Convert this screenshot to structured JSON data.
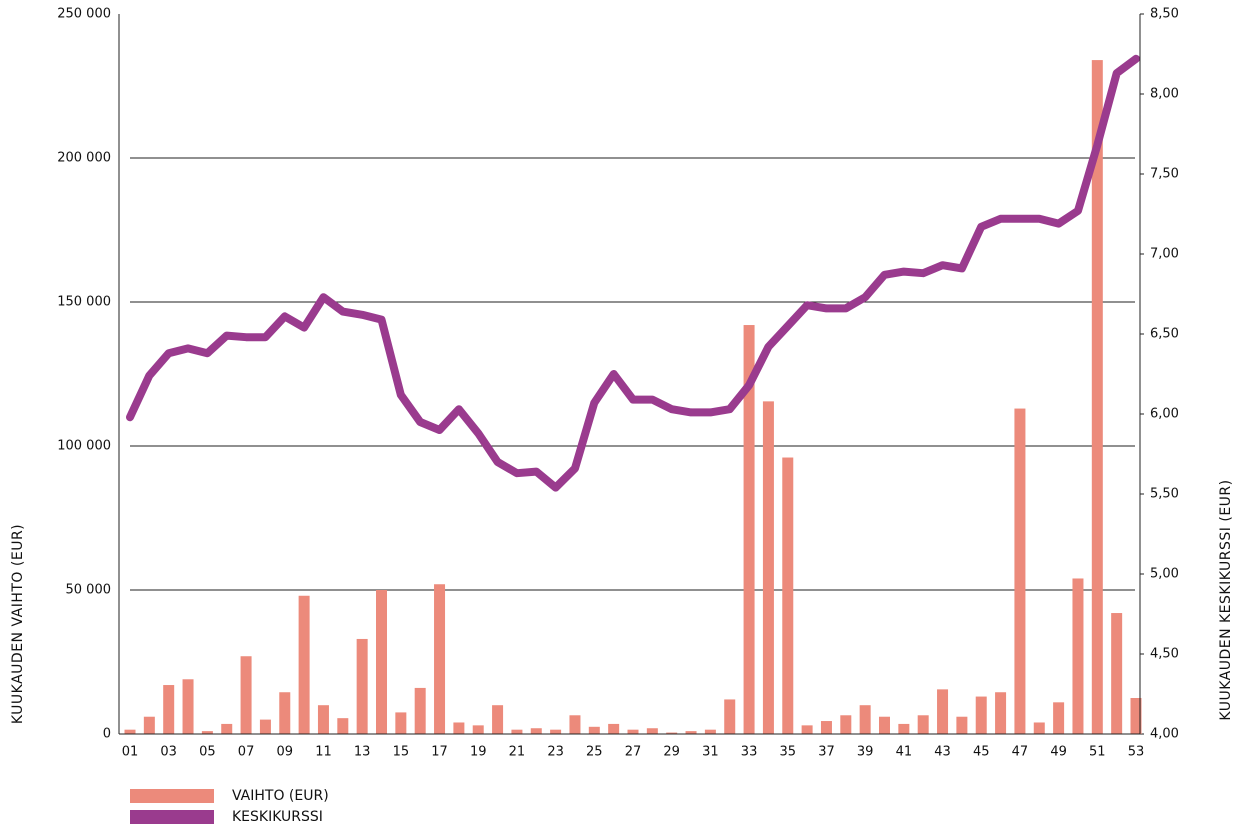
{
  "chart_data": {
    "type": "bar",
    "categories": [
      "01",
      null,
      "03",
      null,
      "05",
      null,
      "07",
      null,
      "09",
      null,
      "11",
      null,
      "13",
      null,
      "15",
      null,
      "17",
      null,
      "19",
      null,
      "21",
      null,
      "23",
      null,
      "25",
      null,
      "27",
      null,
      "29",
      null,
      "31",
      null,
      "33",
      null,
      "35",
      null,
      "37",
      null,
      "39",
      null,
      "41",
      null,
      "43",
      null,
      "45",
      null,
      "47",
      null,
      "49",
      null,
      "51",
      null,
      "53"
    ],
    "series": [
      {
        "name": "VAIHTO (EUR)",
        "type": "bar",
        "color": "#ec8a7b",
        "values": [
          1500,
          6000,
          17000,
          19000,
          1000,
          3500,
          27000,
          5000,
          14500,
          48000,
          10000,
          5500,
          33000,
          50000,
          7500,
          16000,
          52000,
          4000,
          3000,
          10000,
          1500,
          2000,
          1500,
          6500,
          2500,
          3500,
          1500,
          2000,
          500,
          1000,
          1500,
          12000,
          142000,
          115500,
          96000,
          3000,
          4500,
          6500,
          10000,
          6000,
          3500,
          6500,
          15500,
          6000,
          13000,
          14500,
          113000,
          4000,
          11000,
          54000,
          234000,
          42000,
          12500
        ]
      },
      {
        "name": "KESKIKURSSI",
        "type": "line",
        "axis": "y2",
        "color": "#9a3b8e",
        "values": [
          5.98,
          6.24,
          6.38,
          6.41,
          6.38,
          6.49,
          6.48,
          6.48,
          6.61,
          6.54,
          6.73,
          6.64,
          6.62,
          6.59,
          6.12,
          5.95,
          5.9,
          6.03,
          5.88,
          5.7,
          5.63,
          5.64,
          5.54,
          5.66,
          6.07,
          6.25,
          6.09,
          6.09,
          6.03,
          6.01,
          6.01,
          6.03,
          6.18,
          6.42,
          6.55,
          6.68,
          6.66,
          6.66,
          6.73,
          6.87,
          6.89,
          6.88,
          6.93,
          6.91,
          7.17,
          7.22,
          7.22,
          7.22,
          7.19,
          7.27,
          7.68,
          8.13,
          8.22
        ]
      }
    ],
    "y_label": "KUUKAUDEN VAIHTO (EUR)",
    "y2_label": "KUUKAUDEN KESKIKURSSI (EUR)",
    "ylim": [
      0,
      250000
    ],
    "yticks": [
      0,
      {
        "value": 50000,
        "label": "50 000"
      },
      {
        "value": 100000,
        "label": "100 000"
      },
      {
        "value": 150000,
        "label": "150 000"
      },
      {
        "value": 200000,
        "label": "200 000"
      },
      {
        "value": 250000,
        "label": "250 000"
      }
    ],
    "y2lim": [
      4,
      8.5
    ],
    "y2ticks": [
      {
        "value": 4,
        "label": "4,00"
      },
      {
        "value": 4.5,
        "label": "4,50"
      },
      {
        "value": 5,
        "label": "5,00"
      },
      {
        "value": 5.5,
        "label": "5,50"
      },
      {
        "value": 6,
        "label": "6,00"
      },
      {
        "value": 6.5,
        "label": "6,50"
      },
      {
        "value": 7,
        "label": "7,00"
      },
      {
        "value": 7.5,
        "label": "7,50"
      },
      {
        "value": 8,
        "label": "8,00"
      },
      {
        "value": 8.5,
        "label": "8,50"
      }
    ],
    "grid": true,
    "legend": "bottom-left"
  }
}
